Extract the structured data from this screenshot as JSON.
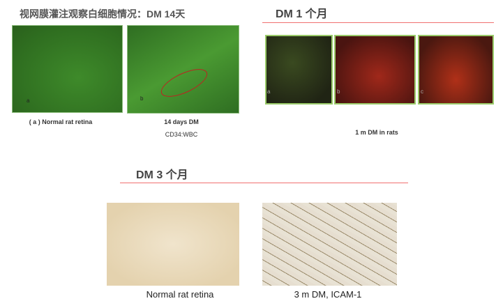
{
  "left_section": {
    "title": "视网膜灌注观察白细胞情况：DM 14天",
    "panel_a_label": "a",
    "panel_b_label": "b",
    "caption_a": "( a ) Normal rat retina",
    "caption_b": "14 days DM",
    "caption_b2": "CD34:WBC"
  },
  "right_section": {
    "title": "DM 1 个月",
    "panel_labels": [
      "a",
      "b",
      "c"
    ],
    "caption": "1 m DM in rats"
  },
  "bottom_section": {
    "title": "DM 3 个月",
    "caption_left": "Normal rat retina",
    "caption_right": "3 m DM, ICAM-1"
  },
  "colors": {
    "accent_line": "#f07070",
    "annotation": "#c02020"
  }
}
